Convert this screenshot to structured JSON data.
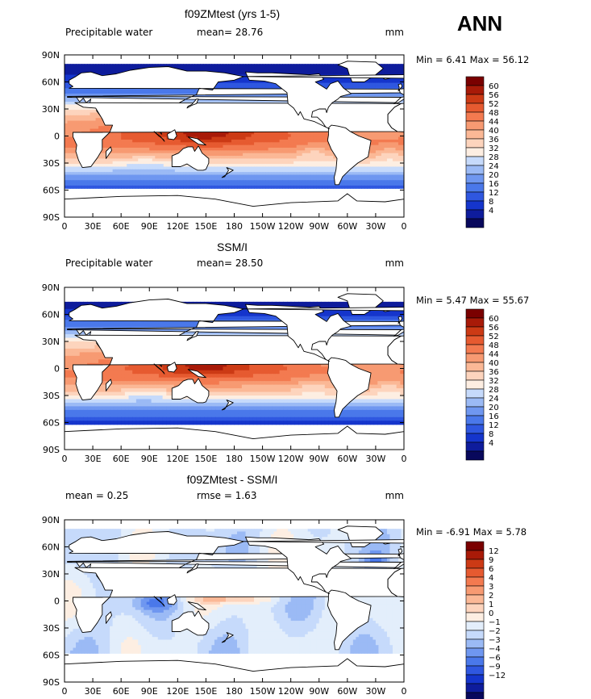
{
  "page": {
    "season": "ANN"
  },
  "palettes": {
    "abs": [
      "#08085c",
      "#0e1c9c",
      "#1535cc",
      "#2f57e0",
      "#4a78ea",
      "#6f97f0",
      "#9bbaf5",
      "#c6dafb",
      "#fdeee2",
      "#fdd4bd",
      "#fbb896",
      "#f79a72",
      "#f37a50",
      "#e65a30",
      "#cc3a15",
      "#a81a08",
      "#7a0000"
    ],
    "diff": [
      "#08085c",
      "#0e1c9c",
      "#1535cc",
      "#2f57e0",
      "#4a78ea",
      "#6f97f0",
      "#9bbaf5",
      "#c6dafb",
      "#e3eefb",
      "#fdeee2",
      "#fdd4bd",
      "#fbb896",
      "#f79a72",
      "#f37a50",
      "#e65a30",
      "#cc3a15",
      "#a81a08",
      "#7a0000"
    ],
    "land": "#ffffff",
    "coast": "#000000"
  },
  "chart_data": [
    {
      "type": "heatmap",
      "title": "f09ZMtest (yrs 1-5)",
      "left_label": "Precipitable water",
      "stat1": "mean=  28.76",
      "stat2": "",
      "units": "mm",
      "minmax": "Min =   6.41 Max =  56.12",
      "variable": "Precipitable water",
      "mean": 28.76,
      "min": 6.41,
      "max": 56.12,
      "x_ticks": [
        "0",
        "30E",
        "60E",
        "90E",
        "120E",
        "150E",
        "180",
        "150W",
        "120W",
        "90W",
        "60W",
        "30W",
        "0"
      ],
      "y_ticks": [
        "90N",
        "60N",
        "30N",
        "0",
        "30S",
        "60S",
        "90S"
      ],
      "colorbar_levels": [
        "60",
        "56",
        "52",
        "48",
        "44",
        "40",
        "36",
        "32",
        "28",
        "24",
        "20",
        "16",
        "12",
        "8",
        "4"
      ],
      "xlim": [
        0,
        360
      ],
      "ylim": [
        -90,
        90
      ]
    },
    {
      "type": "heatmap",
      "title": "SSM/I",
      "left_label": "Precipitable water",
      "stat1": "mean=  28.50",
      "stat2": "",
      "units": "mm",
      "minmax": "Min =   5.47 Max =  55.67",
      "variable": "Precipitable water",
      "mean": 28.5,
      "min": 5.47,
      "max": 55.67,
      "x_ticks": [
        "0",
        "30E",
        "60E",
        "90E",
        "120E",
        "150E",
        "180",
        "150W",
        "120W",
        "90W",
        "60W",
        "30W",
        "0"
      ],
      "y_ticks": [
        "90N",
        "60N",
        "30N",
        "0",
        "30S",
        "60S",
        "90S"
      ],
      "colorbar_levels": [
        "60",
        "56",
        "52",
        "48",
        "44",
        "40",
        "36",
        "32",
        "28",
        "24",
        "20",
        "16",
        "12",
        "8",
        "4"
      ],
      "xlim": [
        0,
        360
      ],
      "ylim": [
        -90,
        90
      ]
    },
    {
      "type": "heatmap",
      "title": "f09ZMtest - SSM/I",
      "left_label": "mean =    0.25",
      "stat1": "rmse =   1.63",
      "stat2": "",
      "units": "mm",
      "minmax": "Min =  -6.91 Max =   5.78",
      "variable": "",
      "mean": 0.25,
      "rmse": 1.63,
      "min": -6.91,
      "max": 5.78,
      "x_ticks": [
        "0",
        "30E",
        "60E",
        "90E",
        "120E",
        "150E",
        "180",
        "150W",
        "120W",
        "90W",
        "60W",
        "30W",
        "0"
      ],
      "y_ticks": [
        "90N",
        "60N",
        "30N",
        "0",
        "30S",
        "60S",
        "90S"
      ],
      "colorbar_levels": [
        "12",
        "9",
        "6",
        "4",
        "3",
        "2",
        "1",
        "0",
        "−1",
        "−2",
        "−3",
        "−4",
        "−6",
        "−9",
        "−12"
      ],
      "xlim": [
        0,
        360
      ],
      "ylim": [
        -90,
        90
      ]
    }
  ]
}
